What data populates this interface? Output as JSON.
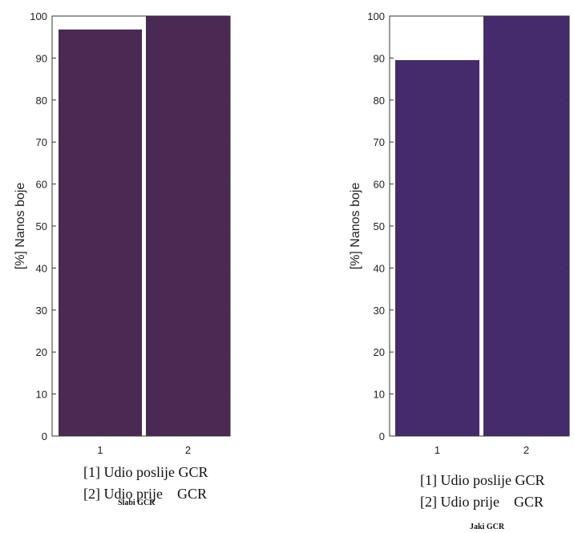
{
  "chart_data": [
    {
      "type": "bar",
      "categories": [
        "1",
        "2"
      ],
      "values": [
        96.8,
        100
      ],
      "ylabel": "[%] Nanos boje",
      "ylim": [
        0,
        100
      ],
      "yticks": [
        0,
        10,
        20,
        30,
        40,
        50,
        60,
        70,
        80,
        90,
        100
      ],
      "bar_color": "#4a2a52",
      "legend": [
        "[1] Udio poslije GCR",
        "[2] Udio prije    GCR"
      ],
      "caption": "Slabi GCR"
    },
    {
      "type": "bar",
      "categories": [
        "1",
        "2"
      ],
      "values": [
        89.5,
        100
      ],
      "ylabel": "[%] Nanos boje",
      "ylim": [
        0,
        100
      ],
      "yticks": [
        0,
        10,
        20,
        30,
        40,
        50,
        60,
        70,
        80,
        90,
        100
      ],
      "bar_color": "#452b6b",
      "legend": [
        "[1] Udio poslije GCR",
        "[2] Udio prije    GCR"
      ],
      "caption": "Jaki GCR"
    }
  ]
}
